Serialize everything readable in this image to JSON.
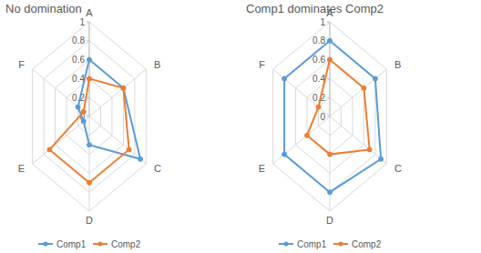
{
  "chart_data": [
    {
      "type": "radar",
      "title": "No domination",
      "categories": [
        "A",
        "B",
        "C",
        "D",
        "E",
        "F"
      ],
      "series": [
        {
          "name": "Comp1",
          "color": "#5b9bd5",
          "values": [
            0.6,
            0.6,
            0.9,
            0.3,
            0.1,
            0.2
          ]
        },
        {
          "name": "Comp2",
          "color": "#ed7d31",
          "values": [
            0.4,
            0.6,
            0.7,
            0.7,
            0.7,
            0.1
          ]
        }
      ],
      "ylim": [
        0,
        1
      ],
      "yticks": [
        0,
        0.2,
        0.4,
        0.6,
        0.8,
        1
      ],
      "grid": true,
      "legend": "bottom",
      "marker": "circle"
    },
    {
      "type": "radar",
      "title": "Comp1 dominates Comp2",
      "categories": [
        "A",
        "B",
        "C",
        "D",
        "E",
        "F"
      ],
      "series": [
        {
          "name": "Comp1",
          "color": "#5b9bd5",
          "values": [
            0.8,
            0.8,
            0.9,
            0.8,
            0.8,
            0.8
          ]
        },
        {
          "name": "Comp2",
          "color": "#ed7d31",
          "values": [
            0.6,
            0.6,
            0.7,
            0.4,
            0.4,
            0.2
          ]
        }
      ],
      "ylim": [
        0,
        1
      ],
      "yticks": [
        0,
        0.2,
        0.4,
        0.6,
        0.8,
        1
      ],
      "grid": true,
      "legend": "bottom",
      "marker": "circle"
    }
  ]
}
